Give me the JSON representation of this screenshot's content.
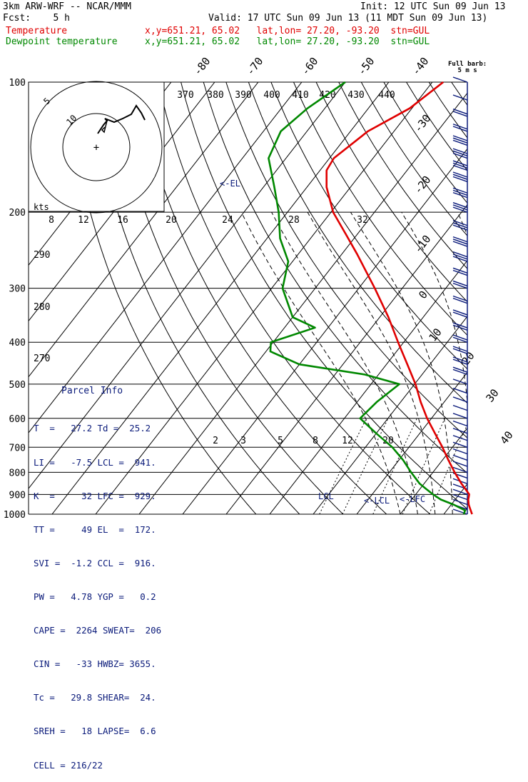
{
  "header": {
    "model": "3km ARW-WRF -- NCAR/MMM",
    "init": "Init: 12 UTC Sun 09 Jun 13",
    "fcst": "Fcst:    5 h",
    "valid": "Valid: 17 UTC Sun 09 Jun 13 (11 MDT Sun 09 Jun 13)",
    "temp_label": "Temperature",
    "temp_loc": "x,y=651.21, 65.02   lat,lon= 27.20, -93.20  stn=GUL",
    "dew_label": "Dewpoint temperature",
    "dew_loc": "x,y=651.21, 65.02   lat,lon= 27.20, -93.20  stn=GUL"
  },
  "barb_header": "Full barb:\n5 m s",
  "parcel": {
    "title": "Parcel Info",
    "rows": [
      "T  =   27.2 Td =  25.2",
      "LI =   -7.5 LCL =  941.",
      "K  =     32 LFC =  929.",
      "TT =     49 EL  =  172.",
      "SVI =  -1.2 CCL =  916.",
      "PW =   4.78 YGP =   0.2",
      "CAPE =  2264 SWEAT=  206",
      "CIN =   -33 HWBZ= 3655.",
      "Tc =   29.8 SHEAR=  24.",
      "SREH =   18 LAPSE=  6.6",
      "CELL = 216/22"
    ]
  },
  "colors": {
    "temperature": "#e00000",
    "dewpoint": "#008800",
    "annotation": "#0a1a7a",
    "grid": "#000000"
  },
  "chart_data": {
    "type": "skew-t",
    "y_axis": {
      "label_ticks": [
        100,
        200,
        300,
        400,
        500,
        600,
        700,
        800,
        900,
        1000
      ],
      "scale": "log-pressure",
      "unit": "hPa",
      "range": [
        1000,
        100
      ]
    },
    "isotherm_labels": [
      -80,
      -70,
      -60,
      -50,
      -40,
      -30,
      -20,
      -10,
      0,
      10,
      20,
      30,
      40
    ],
    "theta_labels": [
      370,
      380,
      390,
      400,
      410,
      420,
      430,
      440
    ],
    "theta_left_labels": [
      290,
      280,
      270
    ],
    "mixing_ratio_labels": [
      2,
      3,
      5,
      8,
      12,
      20
    ],
    "hodograph": {
      "speed_unit": "kts",
      "ring_labels": [
        "5",
        "10"
      ],
      "axis_labels": [
        "8",
        "12",
        "16",
        "20",
        "24",
        "28",
        "32"
      ]
    },
    "levels": {
      "EL": "<-EL",
      "LCL": "<-LCL",
      "LFC": "<-LFC",
      "LCL_marker": "LCL"
    },
    "series": [
      {
        "name": "Temperature",
        "pressure": [
          1000,
          980,
          950,
          925,
          900,
          875,
          850,
          800,
          750,
          700,
          650,
          600,
          550,
          500,
          450,
          400,
          350,
          300,
          250,
          225,
          200,
          175,
          160,
          150,
          130,
          115,
          100
        ],
        "values": [
          26.5,
          25.5,
          24.0,
          23.0,
          22.3,
          20.5,
          18.6,
          15.0,
          11.4,
          7.7,
          3.5,
          -1.0,
          -5.4,
          -9.8,
          -15.2,
          -21.3,
          -28.0,
          -36.3,
          -46.5,
          -52.6,
          -59.5,
          -65.5,
          -68.5,
          -69.0,
          -66.0,
          -60.5,
          -57.5
        ]
      },
      {
        "name": "Dewpoint temperature",
        "pressure": [
          1000,
          980,
          950,
          925,
          900,
          875,
          850,
          800,
          750,
          700,
          650,
          600,
          550,
          500,
          475,
          450,
          420,
          400,
          370,
          350,
          300,
          260,
          230,
          200,
          175,
          150,
          130,
          115,
          100
        ],
        "values": [
          24.6,
          24.2,
          20.5,
          16.7,
          14.0,
          11.5,
          9.0,
          5.0,
          1.0,
          -3.8,
          -10.0,
          -16.4,
          -15.5,
          -13.5,
          -23.2,
          -40.0,
          -49.0,
          -50.5,
          -43.0,
          -50.0,
          -57.5,
          -61.0,
          -67.0,
          -72.0,
          -77.5,
          -84.0,
          -86.0,
          -84.0,
          -80.0
        ]
      }
    ],
    "wind_barbs": {
      "pressures": [
        1000,
        975,
        950,
        925,
        900,
        875,
        850,
        825,
        800,
        775,
        750,
        725,
        700,
        675,
        650,
        625,
        600,
        575,
        550,
        525,
        500,
        475,
        450,
        425,
        400,
        375,
        350,
        325,
        300,
        280,
        260,
        240,
        220,
        200,
        185,
        170,
        160,
        150,
        140,
        130,
        120,
        110,
        100
      ],
      "speed_ms": [
        5,
        5,
        5,
        5,
        5,
        5,
        5,
        5,
        5,
        5,
        5,
        5,
        5,
        5,
        5,
        5,
        5,
        5,
        5,
        5,
        5,
        10,
        10,
        10,
        10,
        10,
        10,
        10,
        10,
        10,
        15,
        15,
        15,
        15,
        15,
        15,
        15,
        15,
        15,
        10,
        10,
        5,
        5
      ]
    }
  }
}
